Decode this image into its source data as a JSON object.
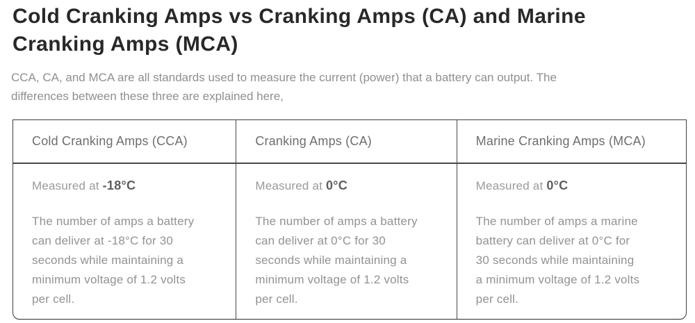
{
  "page": {
    "title": "Cold Cranking Amps vs Cranking Amps (CA) and Marine Cranking Amps (MCA)",
    "intro": "CCA, CA, and MCA are all standards used to measure the current (power) that a battery can output. The\ndifferences between these three are explained here,"
  },
  "colors": {
    "heading_text": "#282828",
    "intro_text": "#8f8f8f",
    "table_border": "#474747",
    "header_cell_text": "#6e6e6e",
    "body_cell_text": "#929292",
    "temperature_text": "#5e5e5e",
    "background": "#ffffff"
  },
  "table": {
    "columns": [
      {
        "header": "Cold Cranking Amps (CCA)",
        "measured_label": "Measured at",
        "temperature": "-18°C",
        "description": "The number of amps a battery\ncan deliver at -18°C for 30\nseconds while maintaining a\nminimum voltage of 1.2 volts\nper cell."
      },
      {
        "header": "Cranking Amps (CA)",
        "measured_label": "Measured at",
        "temperature": "0°C",
        "description": "The number of amps a battery\ncan deliver at 0°C for 30\nseconds while maintaining a\nminimum voltage of 1.2 volts\nper cell."
      },
      {
        "header": "Marine Cranking Amps (MCA)",
        "measured_label": "Measured at",
        "temperature": "0°C",
        "description": "The number of amps a marine\nbattery can deliver at 0°C for\n30 seconds while maintaining\na minimum voltage of 1.2 volts\nper cell."
      }
    ]
  }
}
